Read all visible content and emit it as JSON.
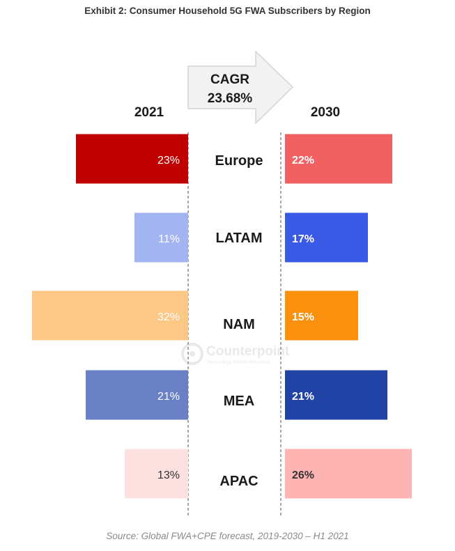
{
  "title": "Exhibit 2: Consumer Household 5G FWA Subscribers by Region",
  "source": "Source: Global FWA+CPE forecast, 2019-2030 – H1 2021",
  "watermark": {
    "name": "Counterpoint",
    "tagline": "Technology Market Research"
  },
  "chart_data": {
    "type": "bar",
    "categories": [
      "Europe",
      "LATAM",
      "NAM",
      "MEA",
      "APAC"
    ],
    "series": [
      {
        "name": "2021",
        "values": [
          23,
          11,
          32,
          21,
          13
        ],
        "labels": [
          "23%",
          "11%",
          "32%",
          "21%",
          "13%"
        ],
        "colors": [
          "#c00000",
          "#a3b4f2",
          "#fcc886",
          "#6a80c4",
          "#fde1e1"
        ],
        "label_colors": [
          "#ffffff",
          "#ffffff",
          "#ffffff",
          "#ffffff",
          "#333333"
        ]
      },
      {
        "name": "2030",
        "values": [
          22,
          17,
          15,
          21,
          26
        ],
        "labels": [
          "22%",
          "17%",
          "15%",
          "21%",
          "26%"
        ],
        "colors": [
          "#f26161",
          "#3a5ae6",
          "#f9900e",
          "#2243a6",
          "#ffb4b4"
        ],
        "label_colors": [
          "#ffffff",
          "#ffffff",
          "#ffffff",
          "#ffffff",
          "#333333"
        ]
      }
    ],
    "cagr": {
      "label": "CAGR",
      "value": "23.68%"
    },
    "unit": "%"
  }
}
